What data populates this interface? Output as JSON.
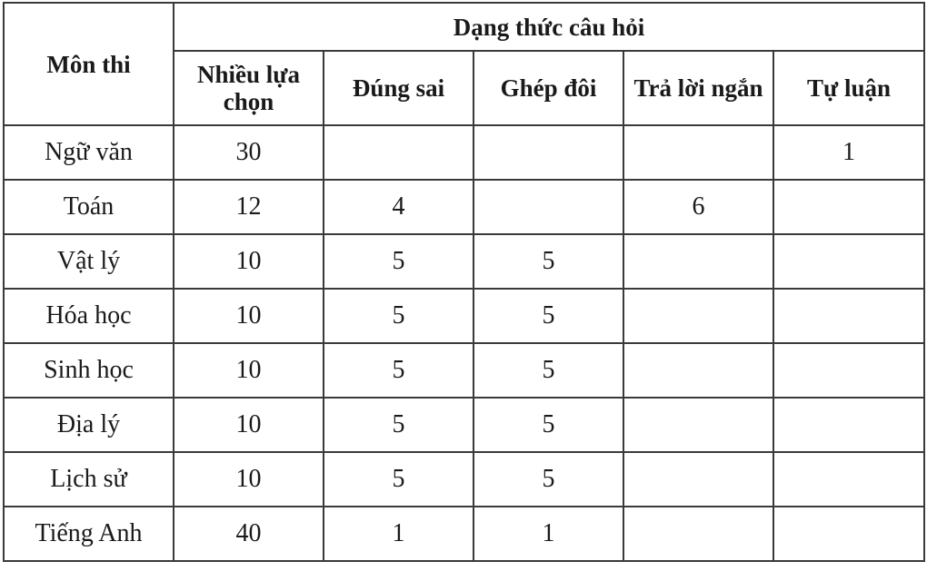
{
  "table": {
    "subject_header": "Môn thi",
    "group_header": "Dạng thức câu hỏi",
    "columns": [
      "Nhiều lựa chọn",
      "Đúng sai",
      "Ghép đôi",
      "Trả lời ngắn",
      "Tự luận"
    ],
    "rows": [
      {
        "subject": "Ngữ văn",
        "values": [
          "30",
          "",
          "",
          "",
          "1"
        ]
      },
      {
        "subject": "Toán",
        "values": [
          "12",
          "4",
          "",
          "6",
          ""
        ]
      },
      {
        "subject": "Vật lý",
        "values": [
          "10",
          "5",
          "5",
          "",
          ""
        ]
      },
      {
        "subject": "Hóa học",
        "values": [
          "10",
          "5",
          "5",
          "",
          ""
        ]
      },
      {
        "subject": "Sinh học",
        "values": [
          "10",
          "5",
          "5",
          "",
          ""
        ]
      },
      {
        "subject": "Địa lý",
        "values": [
          "10",
          "5",
          "5",
          "",
          ""
        ]
      },
      {
        "subject": "Lịch sử",
        "values": [
          "10",
          "5",
          "5",
          "",
          ""
        ]
      },
      {
        "subject": "Tiếng Anh",
        "values": [
          "40",
          "1",
          "1",
          "",
          ""
        ]
      }
    ]
  }
}
